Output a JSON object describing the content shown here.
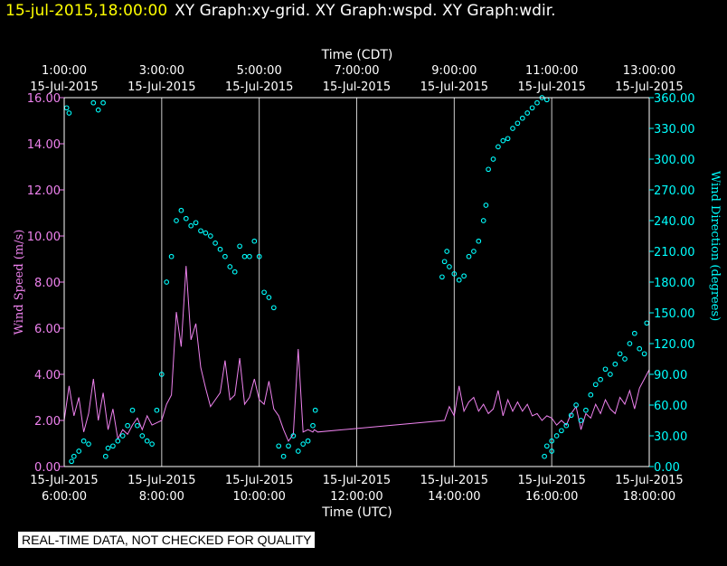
{
  "header": {
    "time": "15-jul-2015,18:00:00",
    "title": "XY Graph:xy-grid.  XY Graph:wspd.  XY Graph:wdir."
  },
  "footer": "REAL-TIME DATA, NOT CHECKED FOR QUALITY",
  "colors": {
    "speed": "#ee82ee",
    "direction": "#00ffff",
    "grid": "#ffffff",
    "background": "#000000"
  },
  "chart_data": {
    "type": "line",
    "top_axis": {
      "label": "Time (CDT)",
      "ticks": [
        [
          "1:00:00",
          "15-Jul-2015"
        ],
        [
          "3:00:00",
          "15-Jul-2015"
        ],
        [
          "5:00:00",
          "15-Jul-2015"
        ],
        [
          "7:00:00",
          "15-Jul-2015"
        ],
        [
          "9:00:00",
          "15-Jul-2015"
        ],
        [
          "11:00:00",
          "15-Jul-2015"
        ],
        [
          "13:00:00",
          "15-Jul-2015"
        ]
      ]
    },
    "bottom_axis": {
      "label": "Time (UTC)",
      "ticks": [
        [
          "15-Jul-2015",
          "6:00:00"
        ],
        [
          "15-Jul-2015",
          "8:00:00"
        ],
        [
          "15-Jul-2015",
          "10:00:00"
        ],
        [
          "15-Jul-2015",
          "12:00:00"
        ],
        [
          "15-Jul-2015",
          "14:00:00"
        ],
        [
          "15-Jul-2015",
          "16:00:00"
        ],
        [
          "15-Jul-2015",
          "18:00:00"
        ]
      ]
    },
    "x_unit": "hours UTC, 15-Jul-2015",
    "xlim": [
      6,
      18
    ],
    "y_left": {
      "label": "Wind Speed (m/s)",
      "ylim": [
        0,
        16
      ],
      "ticks": [
        "0.00",
        "2.00",
        "4.00",
        "6.00",
        "8.00",
        "10.00",
        "12.00",
        "14.00",
        "16.00"
      ]
    },
    "y_right": {
      "label": "Wind Direction (degrees)",
      "ylim": [
        0,
        360
      ],
      "ticks": [
        "0.00",
        "30.00",
        "60.00",
        "90.00",
        "120.00",
        "150.00",
        "180.00",
        "210.00",
        "240.00",
        "270.00",
        "300.00",
        "330.00",
        "360.00"
      ]
    },
    "grid": true,
    "series": [
      {
        "style": "line",
        "axis": "left",
        "x": [
          6.0,
          6.1,
          6.2,
          6.3,
          6.4,
          6.5,
          6.6,
          6.7,
          6.8,
          6.9,
          7.0,
          7.1,
          7.2,
          7.3,
          7.4,
          7.5,
          7.6,
          7.7,
          7.8,
          7.9,
          8.0,
          8.1,
          8.2,
          8.3,
          8.4,
          8.5,
          8.6,
          8.7,
          8.8,
          8.9,
          9.0,
          9.1,
          9.2,
          9.3,
          9.4,
          9.5,
          9.6,
          9.7,
          9.8,
          9.9,
          10.0,
          10.1,
          10.2,
          10.3,
          10.4,
          10.5,
          10.6,
          10.7,
          10.8,
          10.9,
          11.0,
          11.1,
          11.13,
          11.2,
          13.8,
          13.9,
          14.0,
          14.1,
          14.2,
          14.3,
          14.4,
          14.5,
          14.6,
          14.7,
          14.8,
          14.9,
          15.0,
          15.1,
          15.2,
          15.3,
          15.4,
          15.5,
          15.6,
          15.7,
          15.8,
          15.9,
          16.0,
          16.1,
          16.2,
          16.3,
          16.4,
          16.5,
          16.6,
          16.7,
          16.8,
          16.9,
          17.0,
          17.1,
          17.2,
          17.3,
          17.4,
          17.5,
          17.6,
          17.7,
          17.8,
          17.9,
          18.0
        ],
        "y": [
          2.0,
          3.5,
          2.2,
          3.0,
          1.5,
          2.3,
          3.8,
          2.0,
          3.2,
          1.6,
          2.5,
          1.2,
          1.6,
          1.4,
          1.8,
          2.1,
          1.6,
          2.2,
          1.8,
          1.9,
          2.0,
          2.7,
          3.1,
          6.7,
          5.2,
          8.7,
          5.5,
          6.2,
          4.3,
          3.4,
          2.6,
          2.9,
          3.2,
          4.6,
          2.9,
          3.1,
          4.7,
          2.7,
          3.0,
          3.8,
          2.9,
          2.7,
          3.7,
          2.5,
          2.2,
          1.6,
          1.1,
          1.4,
          5.1,
          1.5,
          1.6,
          1.5,
          1.6,
          1.5,
          2.0,
          2.6,
          2.2,
          3.5,
          2.4,
          2.8,
          3.0,
          2.4,
          2.7,
          2.3,
          2.5,
          3.3,
          2.2,
          2.9,
          2.4,
          2.8,
          2.4,
          2.7,
          2.2,
          2.3,
          2.0,
          2.2,
          2.1,
          1.8,
          2.0,
          1.8,
          2.3,
          2.6,
          1.6,
          2.3,
          2.1,
          2.7,
          2.3,
          2.9,
          2.5,
          2.3,
          3.0,
          2.7,
          3.3,
          2.5,
          3.4,
          3.8,
          4.2
        ]
      },
      {
        "style": "markers",
        "axis": "right",
        "x": [
          6.05,
          6.1,
          6.15,
          6.2,
          6.3,
          6.4,
          6.5,
          6.6,
          6.7,
          6.8,
          6.85,
          6.9,
          7.0,
          7.1,
          7.2,
          7.3,
          7.4,
          7.5,
          7.6,
          7.7,
          7.8,
          7.9,
          8.0,
          8.1,
          8.2,
          8.3,
          8.4,
          8.5,
          8.6,
          8.7,
          8.8,
          8.9,
          9.0,
          9.1,
          9.2,
          9.3,
          9.4,
          9.5,
          9.6,
          9.7,
          9.8,
          9.9,
          10.0,
          10.1,
          10.2,
          10.3,
          10.4,
          10.5,
          10.6,
          10.7,
          10.8,
          10.9,
          11.0,
          11.1,
          11.15,
          13.75,
          13.8,
          13.85,
          13.9,
          14.0,
          14.1,
          14.2,
          14.3,
          14.4,
          14.5,
          14.6,
          14.65,
          14.7,
          14.8,
          14.9,
          15.0,
          15.1,
          15.2,
          15.3,
          15.4,
          15.5,
          15.6,
          15.7,
          15.8,
          15.9,
          16.0,
          15.85,
          15.9,
          16.0,
          16.1,
          16.2,
          16.3,
          16.4,
          16.5,
          16.6,
          16.7,
          16.8,
          16.9,
          17.0,
          17.1,
          17.2,
          17.3,
          17.4,
          17.5,
          17.6,
          17.7,
          17.8,
          17.9,
          17.95
        ],
        "y": [
          350,
          345,
          5,
          10,
          15,
          25,
          22,
          355,
          348,
          355,
          10,
          18,
          20,
          25,
          30,
          40,
          55,
          40,
          30,
          25,
          22,
          55,
          90,
          180,
          205,
          240,
          250,
          242,
          235,
          238,
          230,
          228,
          225,
          218,
          212,
          205,
          195,
          190,
          215,
          205,
          205,
          220,
          205,
          170,
          165,
          155,
          20,
          10,
          20,
          30,
          15,
          22,
          25,
          40,
          55,
          185,
          200,
          210,
          195,
          188,
          182,
          186,
          205,
          210,
          220,
          240,
          255,
          290,
          300,
          312,
          318,
          320,
          330,
          335,
          340,
          345,
          350,
          355,
          360,
          358,
          15,
          10,
          20,
          25,
          30,
          35,
          40,
          50,
          60,
          45,
          55,
          70,
          80,
          85,
          95,
          90,
          100,
          110,
          105,
          120,
          130,
          115,
          110,
          140
        ]
      }
    ]
  }
}
